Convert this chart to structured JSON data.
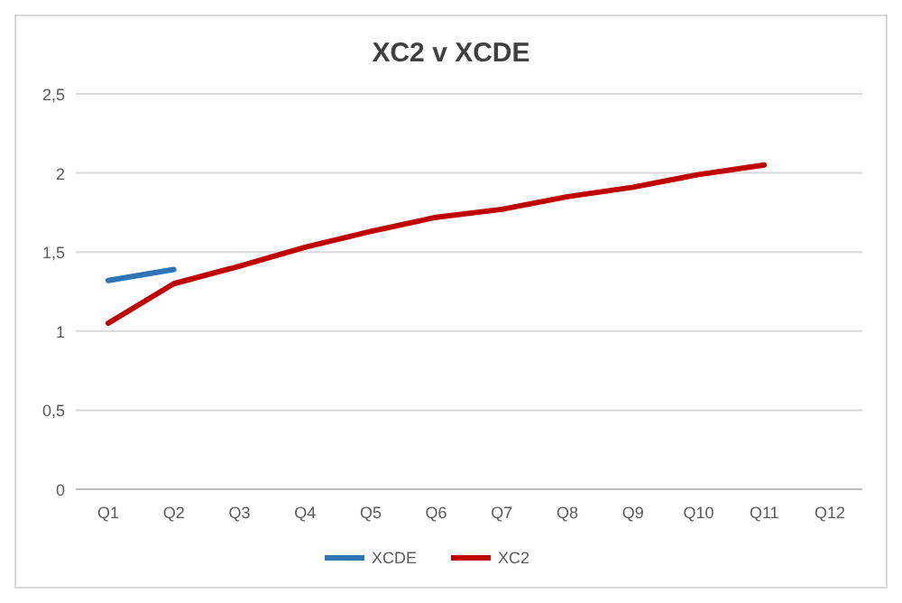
{
  "chart_data": {
    "type": "line",
    "title": "XC2 v XCDE",
    "categories": [
      "Q1",
      "Q2",
      "Q3",
      "Q4",
      "Q5",
      "Q6",
      "Q7",
      "Q8",
      "Q9",
      "Q10",
      "Q11",
      "Q12"
    ],
    "series": [
      {
        "name": "XCDE",
        "color": "#2e75b6",
        "values": [
          1.32,
          1.39,
          null,
          null,
          null,
          null,
          null,
          null,
          null,
          null,
          null,
          null
        ]
      },
      {
        "name": "XC2",
        "color": "#c00000",
        "values": [
          1.05,
          1.3,
          1.41,
          1.53,
          1.63,
          1.72,
          1.77,
          1.85,
          1.91,
          1.99,
          2.05,
          null
        ]
      }
    ],
    "ylim": [
      0,
      2.5
    ],
    "yticks": [
      0,
      {
        "value": 0.5,
        "label": "0,5"
      },
      1,
      {
        "value": 1.5,
        "label": "1,5"
      },
      2,
      {
        "value": 2.5,
        "label": "2,5"
      }
    ],
    "grid": "y",
    "legend": "bottom",
    "marker": "none",
    "line_style": "solid"
  }
}
